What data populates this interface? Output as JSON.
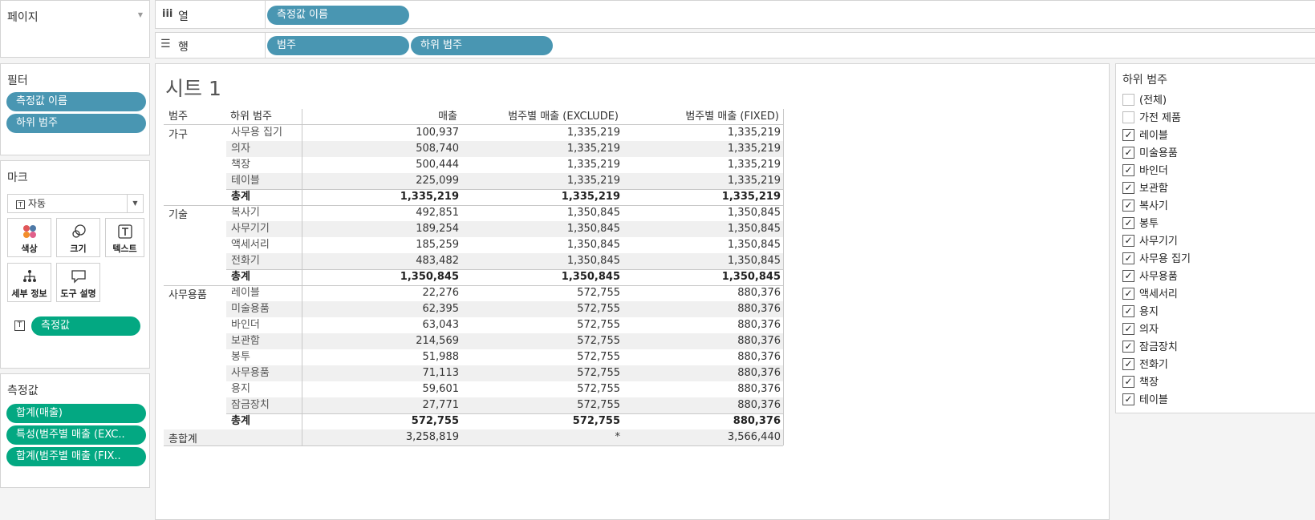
{
  "pages": {
    "title": "페이지"
  },
  "columns_shelf": {
    "label": "열",
    "pills": [
      "측정값 이름"
    ]
  },
  "rows_shelf": {
    "label": "행",
    "pills": [
      "범주",
      "하위 범주"
    ]
  },
  "filters": {
    "title": "필터",
    "pills": [
      "측정값 이름",
      "하위 범주"
    ]
  },
  "marks": {
    "title": "마크",
    "type": "자동",
    "buttons": [
      {
        "label": "색상",
        "icon": "color-icon"
      },
      {
        "label": "크기",
        "icon": "size-icon"
      },
      {
        "label": "텍스트",
        "icon": "text-icon"
      },
      {
        "label": "세부 정보",
        "icon": "detail-icon"
      },
      {
        "label": "도구 설명",
        "icon": "tooltip-icon"
      }
    ],
    "text_pill": "측정값"
  },
  "measure_values": {
    "title": "측정값",
    "pills": [
      "합계(매출)",
      "특성(범주별 매출 (EXC..",
      "합계(범주별 매출 (FIX.."
    ]
  },
  "sheet": {
    "title": "시트 1",
    "headers": {
      "category": "범주",
      "subcategory": "하위 범주",
      "sales": "매출",
      "exclude": "범주별 매출 (EXCLUDE)",
      "fixed": "범주별 매출 (FIXED)"
    },
    "groups": [
      {
        "category": "가구",
        "rows": [
          {
            "sub": "사무용 집기",
            "sales": "100,937",
            "exclude": "1,335,219",
            "fixed": "1,335,219"
          },
          {
            "sub": "의자",
            "sales": "508,740",
            "exclude": "1,335,219",
            "fixed": "1,335,219"
          },
          {
            "sub": "책장",
            "sales": "500,444",
            "exclude": "1,335,219",
            "fixed": "1,335,219"
          },
          {
            "sub": "테이블",
            "sales": "225,099",
            "exclude": "1,335,219",
            "fixed": "1,335,219"
          }
        ],
        "total": {
          "label": "총계",
          "sales": "1,335,219",
          "exclude": "1,335,219",
          "fixed": "1,335,219"
        }
      },
      {
        "category": "기술",
        "rows": [
          {
            "sub": "복사기",
            "sales": "492,851",
            "exclude": "1,350,845",
            "fixed": "1,350,845"
          },
          {
            "sub": "사무기기",
            "sales": "189,254",
            "exclude": "1,350,845",
            "fixed": "1,350,845"
          },
          {
            "sub": "액세서리",
            "sales": "185,259",
            "exclude": "1,350,845",
            "fixed": "1,350,845"
          },
          {
            "sub": "전화기",
            "sales": "483,482",
            "exclude": "1,350,845",
            "fixed": "1,350,845"
          }
        ],
        "total": {
          "label": "총계",
          "sales": "1,350,845",
          "exclude": "1,350,845",
          "fixed": "1,350,845"
        }
      },
      {
        "category": "사무용품",
        "rows": [
          {
            "sub": "레이블",
            "sales": "22,276",
            "exclude": "572,755",
            "fixed": "880,376"
          },
          {
            "sub": "미술용품",
            "sales": "62,395",
            "exclude": "572,755",
            "fixed": "880,376"
          },
          {
            "sub": "바인더",
            "sales": "63,043",
            "exclude": "572,755",
            "fixed": "880,376"
          },
          {
            "sub": "보관함",
            "sales": "214,569",
            "exclude": "572,755",
            "fixed": "880,376"
          },
          {
            "sub": "봉투",
            "sales": "51,988",
            "exclude": "572,755",
            "fixed": "880,376"
          },
          {
            "sub": "사무용품",
            "sales": "71,113",
            "exclude": "572,755",
            "fixed": "880,376"
          },
          {
            "sub": "용지",
            "sales": "59,601",
            "exclude": "572,755",
            "fixed": "880,376"
          },
          {
            "sub": "잠금장치",
            "sales": "27,771",
            "exclude": "572,755",
            "fixed": "880,376"
          }
        ],
        "total": {
          "label": "총계",
          "sales": "572,755",
          "exclude": "572,755",
          "fixed": "880,376"
        }
      }
    ],
    "grand_total": {
      "label": "총합계",
      "sales": "3,258,819",
      "exclude": "*",
      "fixed": "3,566,440"
    }
  },
  "subcategory_filter": {
    "title": "하위 범주",
    "items": [
      {
        "label": "(전체)",
        "checked": false
      },
      {
        "label": "가전 제품",
        "checked": false
      },
      {
        "label": "레이블",
        "checked": true
      },
      {
        "label": "미술용품",
        "checked": true
      },
      {
        "label": "바인더",
        "checked": true
      },
      {
        "label": "보관함",
        "checked": true
      },
      {
        "label": "복사기",
        "checked": true
      },
      {
        "label": "봉투",
        "checked": true
      },
      {
        "label": "사무기기",
        "checked": true
      },
      {
        "label": "사무용 집기",
        "checked": true
      },
      {
        "label": "사무용품",
        "checked": true
      },
      {
        "label": "액세서리",
        "checked": true
      },
      {
        "label": "용지",
        "checked": true
      },
      {
        "label": "의자",
        "checked": true
      },
      {
        "label": "잠금장치",
        "checked": true
      },
      {
        "label": "전화기",
        "checked": true
      },
      {
        "label": "책장",
        "checked": true
      },
      {
        "label": "테이블",
        "checked": true
      }
    ]
  }
}
